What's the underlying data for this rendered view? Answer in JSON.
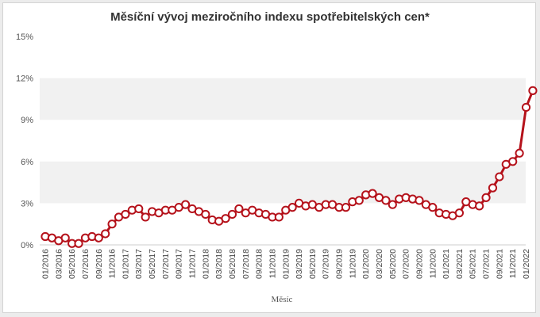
{
  "colors": {
    "line": "#b5121b",
    "band": "#f1f1f1",
    "marker_fill": "#ffffff"
  },
  "chart_data": {
    "type": "line",
    "title": "Měsíční vývoj meziročního indexu spotřebitelských cen*",
    "xlabel": "Měsíc",
    "ylabel": "",
    "ylim": [
      0,
      15
    ],
    "y_ticks": [
      0,
      3,
      6,
      9,
      12,
      15
    ],
    "y_tick_labels": [
      "0%",
      "3%",
      "6%",
      "9%",
      "12%",
      "15%"
    ],
    "x_tick_labels": [
      "01/2016",
      "03/2016",
      "05/2016",
      "07/2016",
      "09/2016",
      "11/2016",
      "01/2017",
      "03/2017",
      "05/2017",
      "07/2017",
      "09/2017",
      "11/2017",
      "01/2018",
      "03/2018",
      "05/2018",
      "07/2018",
      "09/2018",
      "11/2018",
      "01/2019",
      "03/2019",
      "05/2019",
      "07/2019",
      "09/2019",
      "11/2019",
      "01/2020",
      "03/2020",
      "05/2020",
      "07/2020",
      "09/2020",
      "11/2020",
      "01/2021",
      "03/2021",
      "05/2021",
      "07/2021",
      "09/2021",
      "11/2021",
      "01/2022"
    ],
    "series": [
      {
        "values": [
          0.6,
          0.5,
          0.3,
          0.5,
          0.1,
          0.1,
          0.5,
          0.6,
          0.5,
          0.8,
          1.5,
          2.0,
          2.2,
          2.5,
          2.6,
          2.0,
          2.4,
          2.3,
          2.5,
          2.5,
          2.7,
          2.9,
          2.6,
          2.4,
          2.2,
          1.8,
          1.7,
          1.9,
          2.2,
          2.6,
          2.3,
          2.5,
          2.3,
          2.2,
          2.0,
          2.0,
          2.5,
          2.7,
          3.0,
          2.8,
          2.9,
          2.7,
          2.9,
          2.9,
          2.7,
          2.7,
          3.1,
          3.2,
          3.6,
          3.7,
          3.4,
          3.2,
          2.9,
          3.3,
          3.4,
          3.3,
          3.2,
          2.9,
          2.7,
          2.3,
          2.2,
          2.1,
          2.3,
          3.1,
          2.9,
          2.8,
          3.4,
          4.1,
          4.9,
          5.8,
          6.0,
          6.6,
          9.9,
          11.1
        ]
      }
    ]
  }
}
